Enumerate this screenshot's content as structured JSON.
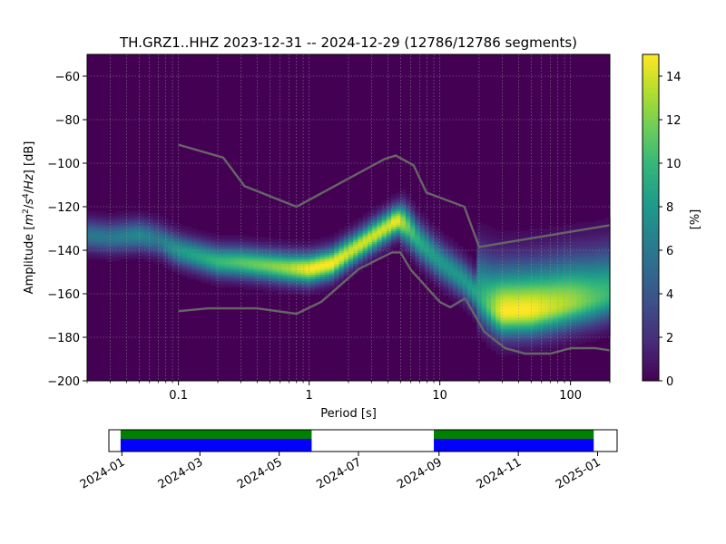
{
  "chart_data": {
    "type": "heatmap",
    "title": "TH.GRZ1..HHZ   2023-12-31 -- 2024-12-29  (12786/12786 segments)",
    "xlabel": "Period [s]",
    "ylabel_parts": [
      "Amplitude [",
      "m",
      "2",
      "/",
      "s",
      "4",
      "/",
      "Hz",
      "] [dB]"
    ],
    "x_scale": "log",
    "xlim": [
      0.02,
      200
    ],
    "x_ticks": [
      {
        "value": 0.1,
        "label": "0.1"
      },
      {
        "value": 1,
        "label": "1"
      },
      {
        "value": 10,
        "label": "10"
      },
      {
        "value": 100,
        "label": "100"
      }
    ],
    "ylim": [
      -200,
      -50
    ],
    "y_ticks": [
      {
        "value": -60,
        "label": "−60"
      },
      {
        "value": -80,
        "label": "−80"
      },
      {
        "value": -100,
        "label": "−100"
      },
      {
        "value": -120,
        "label": "−120"
      },
      {
        "value": -140,
        "label": "−140"
      },
      {
        "value": -160,
        "label": "−160"
      },
      {
        "value": -180,
        "label": "−180"
      },
      {
        "value": -200,
        "label": "−200"
      }
    ],
    "grid": true,
    "colorbar": {
      "label": "[%]",
      "range": [
        0,
        15
      ],
      "colormap": "viridis",
      "ticks": [
        {
          "value": 0,
          "label": "0"
        },
        {
          "value": 2,
          "label": "2"
        },
        {
          "value": 4,
          "label": "4"
        },
        {
          "value": 6,
          "label": "6"
        },
        {
          "value": 8,
          "label": "8"
        },
        {
          "value": 10,
          "label": "10"
        },
        {
          "value": 12,
          "label": "12"
        },
        {
          "value": 14,
          "label": "14"
        }
      ]
    },
    "density_mode_curve": {
      "period": [
        0.02,
        0.03,
        0.05,
        0.07,
        0.1,
        0.15,
        0.2,
        0.3,
        0.5,
        0.7,
        1,
        1.5,
        2,
        3,
        4,
        4.7,
        5.5,
        7,
        10,
        15,
        20,
        25,
        30,
        50,
        70,
        100,
        150,
        200
      ],
      "amplitude_db": [
        -133,
        -134,
        -133,
        -135,
        -140,
        -143,
        -145,
        -145.5,
        -147,
        -148,
        -148.5,
        -146,
        -141,
        -134,
        -129,
        -126,
        -128,
        -136,
        -145,
        -153,
        -161,
        -166,
        -168,
        -167.5,
        -166,
        -164,
        -162,
        -160
      ],
      "peak_percent": [
        6,
        6,
        7,
        6,
        8,
        9,
        10,
        11,
        12,
        13,
        15,
        15,
        14,
        14,
        14,
        15,
        12,
        9,
        8,
        8,
        9,
        12,
        15,
        15,
        14,
        13,
        11,
        10
      ]
    },
    "noise_models": [
      {
        "points": [
          [
            0.1,
            -91.5
          ],
          [
            0.22,
            -97.4
          ],
          [
            0.32,
            -110.5
          ],
          [
            0.8,
            -120
          ],
          [
            3.8,
            -98
          ],
          [
            4.6,
            -96.5
          ],
          [
            6.3,
            -101
          ],
          [
            7.9,
            -113.5
          ],
          [
            15.4,
            -120
          ],
          [
            20,
            -138.5
          ],
          [
            200,
            -128.5
          ]
        ]
      },
      {
        "points": [
          [
            0.1,
            -168
          ],
          [
            0.17,
            -166.7
          ],
          [
            0.4,
            -166.7
          ],
          [
            0.8,
            -169.2
          ],
          [
            1.24,
            -163.7
          ],
          [
            2.4,
            -148.6
          ],
          [
            4.3,
            -141
          ],
          [
            5.0,
            -141
          ],
          [
            6.0,
            -149
          ],
          [
            10,
            -163.8
          ],
          [
            12,
            -166.2
          ],
          [
            15.6,
            -162.1
          ],
          [
            21.9,
            -177.5
          ],
          [
            31.6,
            -185
          ],
          [
            45,
            -187.5
          ],
          [
            70,
            -187.5
          ],
          [
            101,
            -185
          ],
          [
            154,
            -185
          ],
          [
            200,
            -186
          ]
        ]
      }
    ],
    "coverage": {
      "range": [
        "2023-12-22",
        "2025-01-16"
      ],
      "x_ticks": [
        {
          "date": "2024-01-01",
          "label": "2024-01"
        },
        {
          "date": "2024-03-01",
          "label": "2024-03"
        },
        {
          "date": "2024-05-01",
          "label": "2024-05"
        },
        {
          "date": "2024-07-01",
          "label": "2024-07"
        },
        {
          "date": "2024-09-01",
          "label": "2024-09"
        },
        {
          "date": "2024-11-01",
          "label": "2024-11"
        },
        {
          "date": "2025-01-01",
          "label": "2025-01"
        }
      ],
      "segments": [
        {
          "start": "2023-12-31",
          "end": "2024-05-26"
        },
        {
          "start": "2024-08-28",
          "end": "2024-12-29"
        }
      ],
      "colors": {
        "used": "#0000ff",
        "available": "#008000"
      }
    }
  }
}
